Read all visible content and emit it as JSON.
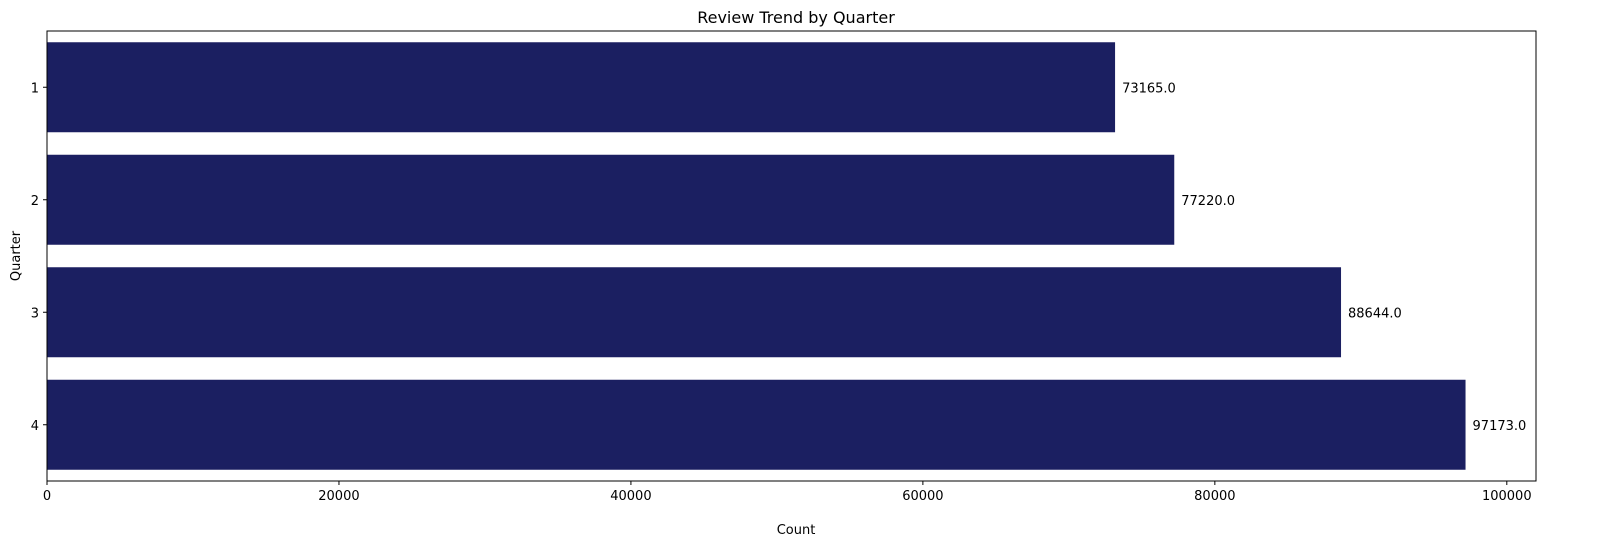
{
  "chart_data": {
    "type": "bar",
    "orientation": "horizontal",
    "title": "Review Trend by Quarter",
    "xlabel": "Count",
    "ylabel": "Quarter",
    "categories": [
      "1",
      "2",
      "3",
      "4"
    ],
    "values": [
      73165,
      77220,
      88644,
      97173
    ],
    "data_labels": [
      "73165.0",
      "77220.0",
      "88644.0",
      "97173.0"
    ],
    "xlim": [
      0,
      102000
    ],
    "x_ticks": [
      0,
      20000,
      40000,
      60000,
      80000,
      100000
    ],
    "x_tick_labels": [
      "0",
      "20000",
      "40000",
      "60000",
      "80000",
      "100000"
    ],
    "bar_color": "#1b1f61",
    "grid": false,
    "legend": "none"
  }
}
